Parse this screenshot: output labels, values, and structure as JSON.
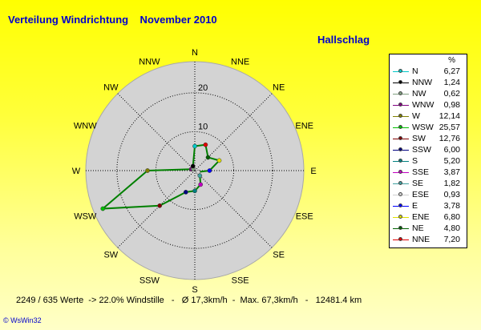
{
  "header": {
    "title": "Verteilung Windrichtung    November 2010",
    "station": "Hallschlag"
  },
  "chart_data": {
    "type": "radar",
    "directions": [
      "N",
      "NNE",
      "NE",
      "ENE",
      "E",
      "ESE",
      "SE",
      "SSE",
      "S",
      "SSW",
      "SW",
      "WSW",
      "W",
      "WNW",
      "NW",
      "NNW"
    ],
    "values": [
      6.27,
      7.2,
      4.8,
      6.8,
      3.78,
      0.93,
      1.82,
      3.87,
      5.2,
      6.0,
      12.76,
      25.57,
      12.14,
      0.98,
      0.62,
      1.24
    ],
    "rings": [
      10,
      20
    ],
    "rmax": 28,
    "unit": "%"
  },
  "legend": {
    "unit": "%",
    "items": [
      {
        "name": "N",
        "value": "6,27",
        "color": "#00c8c8"
      },
      {
        "name": "NNW",
        "value": "1,24",
        "color": "#000000"
      },
      {
        "name": "NW",
        "value": "0,62",
        "color": "#80a080"
      },
      {
        "name": "WNW",
        "value": "0,98",
        "color": "#800080"
      },
      {
        "name": "W",
        "value": "12,14",
        "color": "#808000"
      },
      {
        "name": "WSW",
        "value": "25,57",
        "color": "#00c000"
      },
      {
        "name": "SW",
        "value": "12,76",
        "color": "#800000"
      },
      {
        "name": "SSW",
        "value": "6,00",
        "color": "#000080"
      },
      {
        "name": "S",
        "value": "5,20",
        "color": "#008080"
      },
      {
        "name": "SSE",
        "value": "3,87",
        "color": "#c000c0"
      },
      {
        "name": "SE",
        "value": "1,82",
        "color": "#40a0a0"
      },
      {
        "name": "ESE",
        "value": "0,93",
        "color": "#d0d0d0"
      },
      {
        "name": "E",
        "value": "3,78",
        "color": "#0000ff"
      },
      {
        "name": "ENE",
        "value": "6,80",
        "color": "#e0e000"
      },
      {
        "name": "NE",
        "value": "4,80",
        "color": "#006000"
      },
      {
        "name": "NNE",
        "value": "7,20",
        "color": "#e00000"
      }
    ]
  },
  "footer": {
    "stats": "2249 / 635 Werte  -> 22.0% Windstille   -   Ø 17,3km/h  -  Max. 67,3km/h   -   12481.4 km",
    "credit": "© WsWin32"
  }
}
